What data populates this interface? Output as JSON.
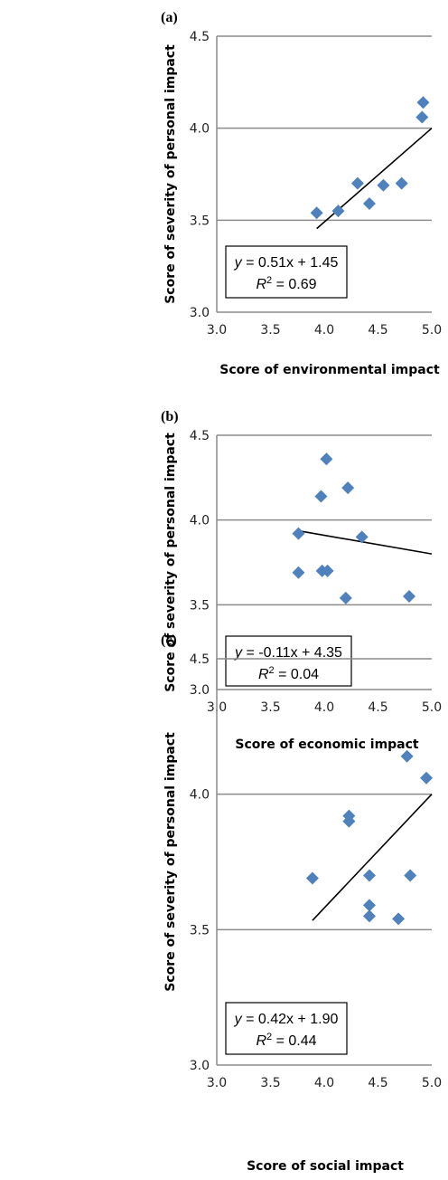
{
  "chart_data": [
    {
      "type": "scatter",
      "panel": "(a)",
      "xlabel": "Score of environmental impact",
      "ylabel": "Score of severity of personal impact",
      "xlim": [
        3.0,
        5.0
      ],
      "ylim": [
        3.0,
        4.5
      ],
      "xticks": [
        "3.0",
        "3.5",
        "4.0",
        "4.5",
        "5.0"
      ],
      "yticks": [
        "3.0",
        "3.5",
        "4.0",
        "4.5"
      ],
      "points": [
        {
          "x": 3.93,
          "y": 3.54
        },
        {
          "x": 4.13,
          "y": 3.55
        },
        {
          "x": 4.31,
          "y": 3.7
        },
        {
          "x": 4.42,
          "y": 3.59
        },
        {
          "x": 4.55,
          "y": 3.69
        },
        {
          "x": 4.72,
          "y": 3.7
        },
        {
          "x": 4.91,
          "y": 4.06
        },
        {
          "x": 4.92,
          "y": 4.14
        }
      ],
      "trendline": {
        "slope": 0.51,
        "intercept": 1.45,
        "x_range": [
          3.93,
          5.0
        ]
      },
      "equation": "= 0.51x + 1.45",
      "r2_text": "= 0.69",
      "grid": true,
      "marker_color": "#4f81bd"
    },
    {
      "type": "scatter",
      "panel": "(b)",
      "xlabel": "Score of economic impact",
      "ylabel": "Score of severity of personal impact",
      "xlim": [
        3.0,
        5.0
      ],
      "ylim": [
        3.0,
        4.5
      ],
      "xticks": [
        "3.0",
        "3.5",
        "4.0",
        "4.5",
        "5.0"
      ],
      "yticks": [
        "3.0",
        "3.5",
        "4.0",
        "4.5"
      ],
      "points": [
        {
          "x": 3.76,
          "y": 3.92
        },
        {
          "x": 3.76,
          "y": 3.69
        },
        {
          "x": 3.97,
          "y": 4.14
        },
        {
          "x": 3.98,
          "y": 3.7
        },
        {
          "x": 4.02,
          "y": 4.36
        },
        {
          "x": 4.03,
          "y": 3.7
        },
        {
          "x": 4.2,
          "y": 3.54
        },
        {
          "x": 4.22,
          "y": 4.19
        },
        {
          "x": 4.35,
          "y": 3.9
        },
        {
          "x": 4.79,
          "y": 3.55
        }
      ],
      "trendline": {
        "slope": -0.11,
        "intercept": 4.35,
        "x_range": [
          3.76,
          5.0
        ]
      },
      "equation": "= -0.11x + 4.35",
      "r2_text": "= 0.04",
      "grid": true,
      "marker_color": "#4f81bd"
    },
    {
      "type": "scatter",
      "panel": "(c)",
      "xlabel": "Score of social impact",
      "ylabel": "Score of severity of personal impact",
      "xlim": [
        3.0,
        5.0
      ],
      "ylim": [
        3.0,
        4.5
      ],
      "xticks": [
        "3.0",
        "3.5",
        "4.0",
        "4.5",
        "5.0"
      ],
      "yticks": [
        "3.0",
        "3.5",
        "4.0",
        "4.5"
      ],
      "points": [
        {
          "x": 3.89,
          "y": 3.69
        },
        {
          "x": 4.23,
          "y": 3.92
        },
        {
          "x": 4.23,
          "y": 3.9
        },
        {
          "x": 4.42,
          "y": 3.7
        },
        {
          "x": 4.42,
          "y": 3.59
        },
        {
          "x": 4.42,
          "y": 3.55
        },
        {
          "x": 4.69,
          "y": 3.54
        },
        {
          "x": 4.77,
          "y": 4.14
        },
        {
          "x": 4.8,
          "y": 3.7
        },
        {
          "x": 4.95,
          "y": 4.06
        }
      ],
      "trendline": {
        "slope": 0.42,
        "intercept": 1.9,
        "x_range": [
          3.89,
          5.0
        ]
      },
      "equation": "= 0.42x + 1.90",
      "r2_text": "= 0.44",
      "grid": true,
      "marker_color": "#4f81bd"
    }
  ]
}
